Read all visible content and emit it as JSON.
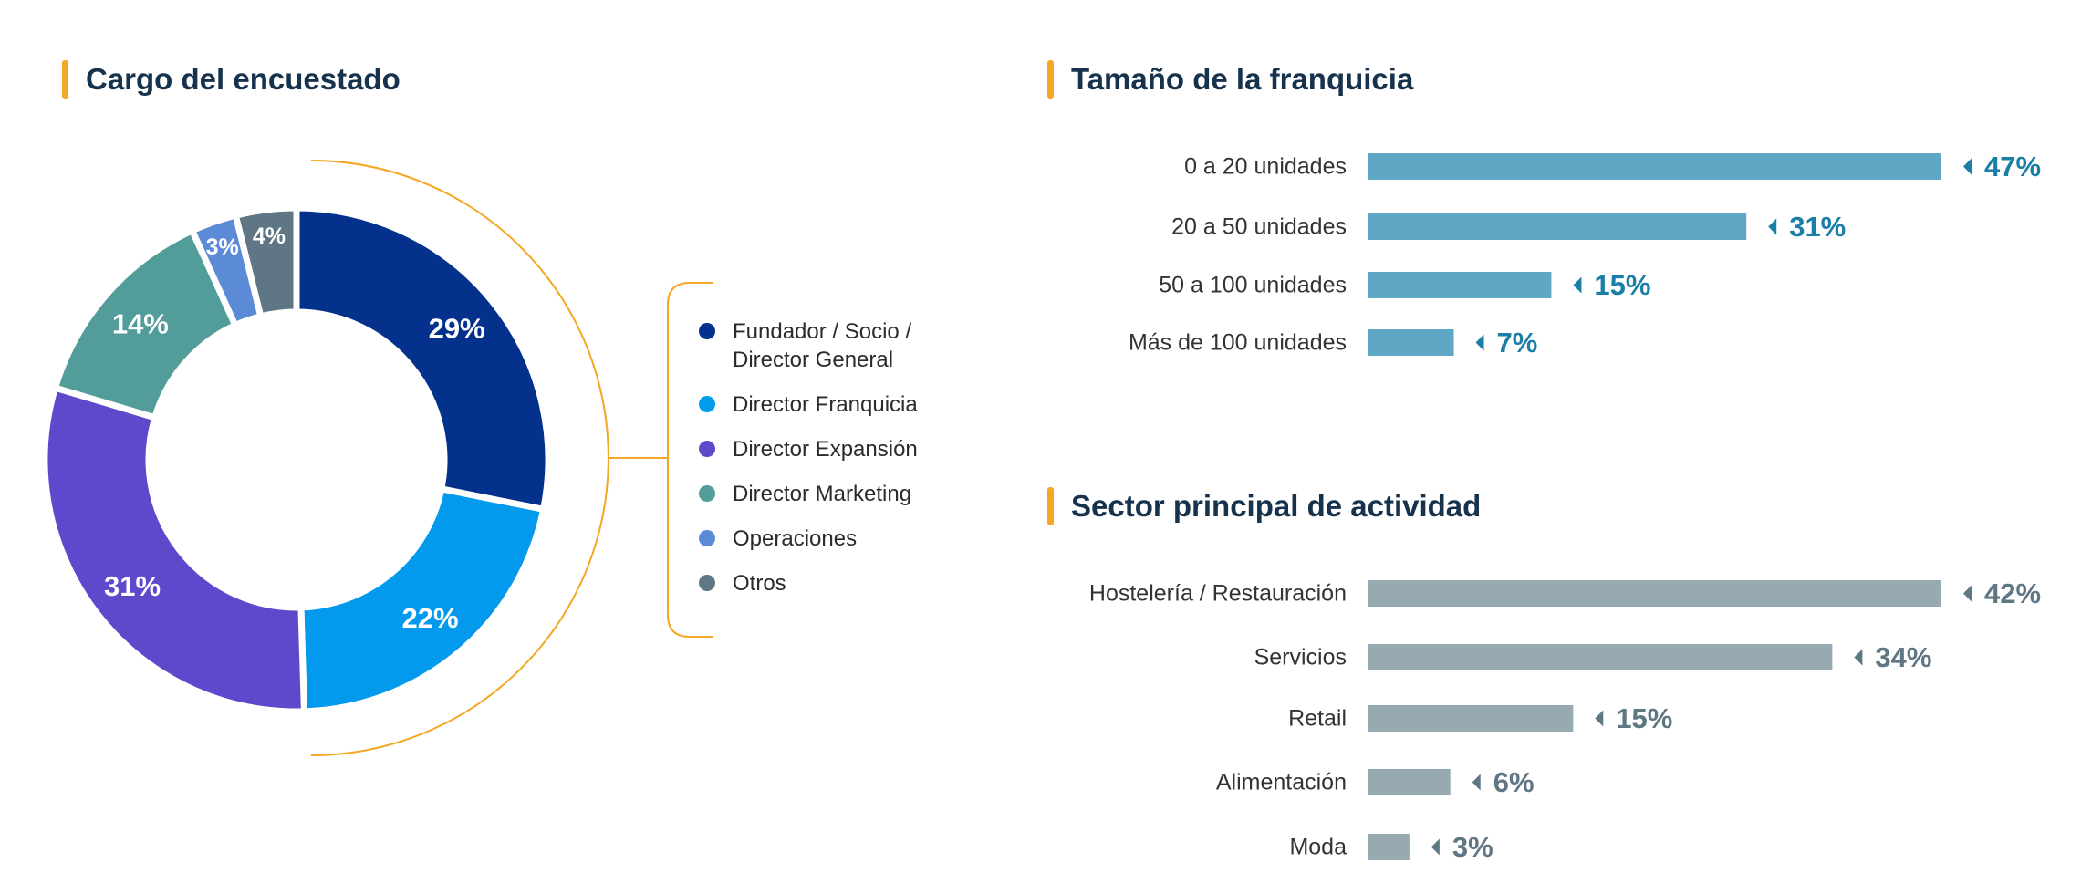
{
  "colors": {
    "accent": "#f5a623",
    "title": "#17324d",
    "franquicia_bar": "#5ea7c5",
    "franquicia_value": "#1a7ea6",
    "sector_bar": "#97a9b1",
    "sector_value": "#5f7683"
  },
  "chart_data": [
    {
      "type": "pie",
      "title": "Cargo del encuestado",
      "legend": "right",
      "slices": [
        {
          "name": "Fundador / Socio / Director General",
          "legend_lines": [
            "Fundador / Socio /",
            "Director General"
          ],
          "value": 29,
          "label": "29%",
          "color": "#03318c"
        },
        {
          "name": "Director Franquicia",
          "legend_lines": [
            "Director Franquicia"
          ],
          "value": 22,
          "label": "22%",
          "color": "#0399ec"
        },
        {
          "name": "Director Expansión",
          "legend_lines": [
            "Director Expansión"
          ],
          "value": 31,
          "label": "31%",
          "color": "#5c49cb"
        },
        {
          "name": "Director Marketing",
          "legend_lines": [
            "Director Marketing"
          ],
          "value": 14,
          "label": "14%",
          "color": "#529d9a"
        },
        {
          "name": "Operaciones",
          "legend_lines": [
            "Operaciones"
          ],
          "value": 3,
          "label": "3%",
          "color": "#5b8ad6"
        },
        {
          "name": "Otros",
          "legend_lines": [
            "Otros"
          ],
          "value": 4,
          "label": "4%",
          "color": "#5f7684"
        }
      ]
    },
    {
      "type": "bar",
      "orientation": "horizontal",
      "title": "Tamaño de la franquicia",
      "categories": [
        "0 a 20 unidades",
        "20 a 50 unidades",
        "50 a 100 unidades",
        "Más de 100 unidades"
      ],
      "values": [
        47,
        31,
        15,
        7
      ],
      "value_labels": [
        "47%",
        "31%",
        "15%",
        "7%"
      ]
    },
    {
      "type": "bar",
      "orientation": "horizontal",
      "title": "Sector principal de actividad",
      "categories": [
        "Hostelería / Restauración",
        "Servicios",
        "Retail",
        "Alimentación",
        "Moda"
      ],
      "values": [
        42,
        34,
        15,
        6,
        3
      ],
      "value_labels": [
        "42%",
        "34%",
        "15%",
        "6%",
        "3%"
      ]
    }
  ]
}
